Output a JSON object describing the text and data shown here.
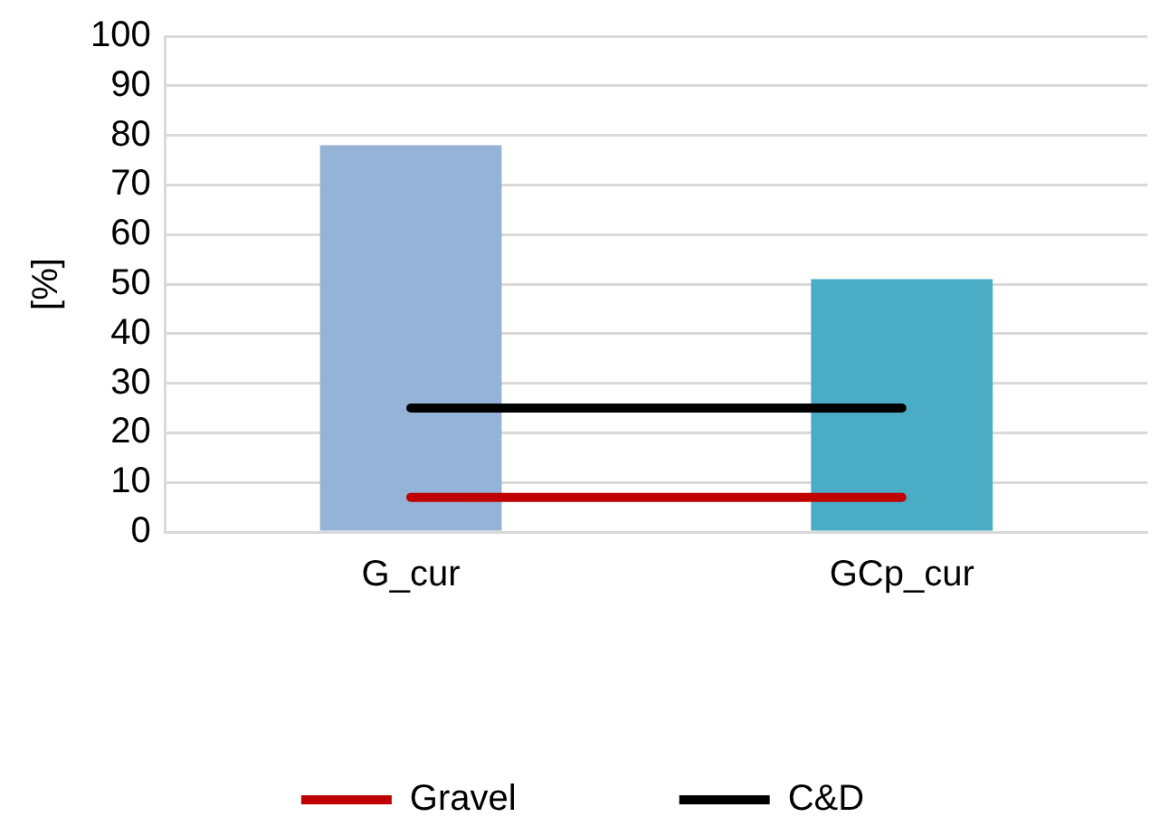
{
  "chart_data": {
    "type": "bar",
    "ylabel": "[%]",
    "categories": [
      "G_cur",
      "GCp_cur"
    ],
    "series": [
      {
        "colors": [
          "#95b3d7",
          "#4bacc6"
        ],
        "values": [
          78,
          51
        ]
      },
      {
        "type": "line",
        "name": "Gravel",
        "color": "#c00000",
        "values": [
          7,
          7
        ]
      },
      {
        "type": "line",
        "name": "C&D",
        "color": "#000000",
        "values": [
          25,
          25
        ]
      }
    ],
    "ylim": [
      0,
      100
    ],
    "yticks": [
      0,
      10,
      20,
      30,
      40,
      50,
      60,
      70,
      80,
      90,
      100
    ],
    "grid": "y",
    "legend": "bottom",
    "marker": "none",
    "line_style": "solid"
  }
}
